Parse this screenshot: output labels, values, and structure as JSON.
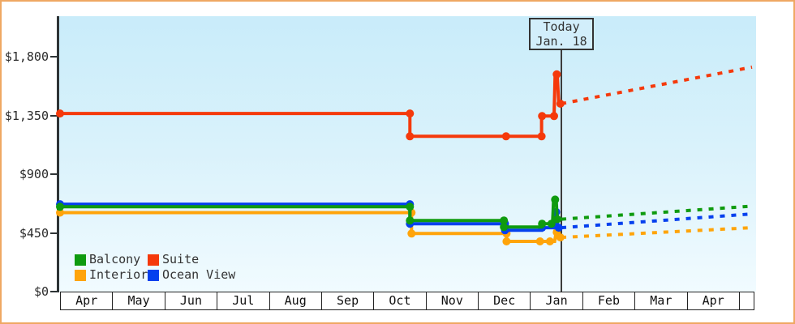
{
  "chart_data": {
    "type": "line",
    "y_axis": {
      "tick_labels": [
        "$1,800",
        "$1,350",
        "$900",
        "$450",
        "$0"
      ],
      "tick_values": [
        1800,
        1350,
        900,
        450,
        0
      ],
      "ylim": [
        0,
        2100
      ]
    },
    "x_axis": {
      "month_labels": [
        "Apr",
        "May",
        "Jun",
        "Jul",
        "Aug",
        "Sep",
        "Oct",
        "Nov",
        "Dec",
        "Jan",
        "Feb",
        "Mar",
        "Apr"
      ]
    },
    "today_marker": {
      "line1": "Today",
      "line2": "Jan. 18",
      "month_position": 9.6
    },
    "series": [
      {
        "name": "Interior",
        "color": "#ffa40a",
        "solid_points": [
          [
            0,
            605
          ],
          [
            6.73,
            605
          ],
          [
            6.73,
            445
          ],
          [
            8.55,
            445
          ],
          [
            8.55,
            385
          ],
          [
            9.47,
            385
          ],
          [
            9.5,
            455
          ],
          [
            9.56,
            415
          ],
          [
            9.6,
            415
          ]
        ],
        "marker_points": [
          [
            0,
            605
          ],
          [
            6.73,
            605
          ],
          [
            6.73,
            445
          ],
          [
            8.55,
            445
          ],
          [
            8.55,
            385
          ],
          [
            9.19,
            385
          ],
          [
            9.38,
            385
          ],
          [
            9.51,
            455
          ],
          [
            9.58,
            415
          ]
        ],
        "forecast_points": [
          [
            9.6,
            415
          ],
          [
            13.25,
            490
          ]
        ]
      },
      {
        "name": "Ocean View",
        "color": "#0540ee",
        "solid_points": [
          [
            0,
            670
          ],
          [
            6.7,
            670
          ],
          [
            6.7,
            520
          ],
          [
            8.52,
            520
          ],
          [
            8.52,
            470
          ],
          [
            9.22,
            470
          ],
          [
            9.23,
            490
          ],
          [
            9.47,
            490
          ],
          [
            9.49,
            610
          ],
          [
            9.52,
            610
          ],
          [
            9.53,
            490
          ],
          [
            9.6,
            490
          ]
        ],
        "marker_points": [
          [
            0,
            670
          ],
          [
            6.7,
            670
          ],
          [
            6.7,
            520
          ],
          [
            8.52,
            520
          ],
          [
            8.52,
            470
          ],
          [
            9.23,
            490
          ],
          [
            9.5,
            610
          ],
          [
            9.55,
            490
          ]
        ],
        "forecast_points": [
          [
            9.6,
            490
          ],
          [
            13.25,
            595
          ]
        ]
      },
      {
        "name": "Balcony",
        "color": "#0f9b0f",
        "solid_points": [
          [
            0,
            650
          ],
          [
            6.7,
            650
          ],
          [
            6.7,
            545
          ],
          [
            8.5,
            545
          ],
          [
            8.5,
            495
          ],
          [
            9.22,
            495
          ],
          [
            9.23,
            520
          ],
          [
            9.43,
            520
          ],
          [
            9.45,
            705
          ],
          [
            9.5,
            705
          ],
          [
            9.52,
            555
          ],
          [
            9.6,
            555
          ]
        ],
        "marker_points": [
          [
            0,
            650
          ],
          [
            6.7,
            650
          ],
          [
            6.7,
            545
          ],
          [
            8.5,
            545
          ],
          [
            8.5,
            495
          ],
          [
            9.23,
            520
          ],
          [
            9.41,
            520
          ],
          [
            9.48,
            705
          ],
          [
            9.52,
            555
          ]
        ],
        "forecast_points": [
          [
            9.6,
            555
          ],
          [
            13.25,
            655
          ]
        ]
      },
      {
        "name": "Suite",
        "color": "#f5390b",
        "solid_points": [
          [
            0,
            1365
          ],
          [
            6.7,
            1365
          ],
          [
            6.7,
            1190
          ],
          [
            8.54,
            1190
          ],
          [
            9.22,
            1190
          ],
          [
            9.22,
            1345
          ],
          [
            9.46,
            1345
          ],
          [
            9.48,
            1665
          ],
          [
            9.52,
            1665
          ],
          [
            9.55,
            1440
          ],
          [
            9.6,
            1440
          ]
        ],
        "marker_points": [
          [
            0,
            1365
          ],
          [
            6.7,
            1365
          ],
          [
            6.7,
            1190
          ],
          [
            8.54,
            1190
          ],
          [
            9.22,
            1190
          ],
          [
            9.23,
            1345
          ],
          [
            9.46,
            1345
          ],
          [
            9.51,
            1665
          ],
          [
            9.58,
            1440
          ]
        ],
        "forecast_points": [
          [
            9.6,
            1440
          ],
          [
            13.25,
            1720
          ]
        ]
      }
    ],
    "legend": {
      "items": [
        {
          "label": "Balcony",
          "color": "#0f9b0f"
        },
        {
          "label": "Suite",
          "color": "#f5390b"
        },
        {
          "label": "Interior",
          "color": "#ffa40a"
        },
        {
          "label": "Ocean View",
          "color": "#0540ee"
        }
      ]
    }
  }
}
